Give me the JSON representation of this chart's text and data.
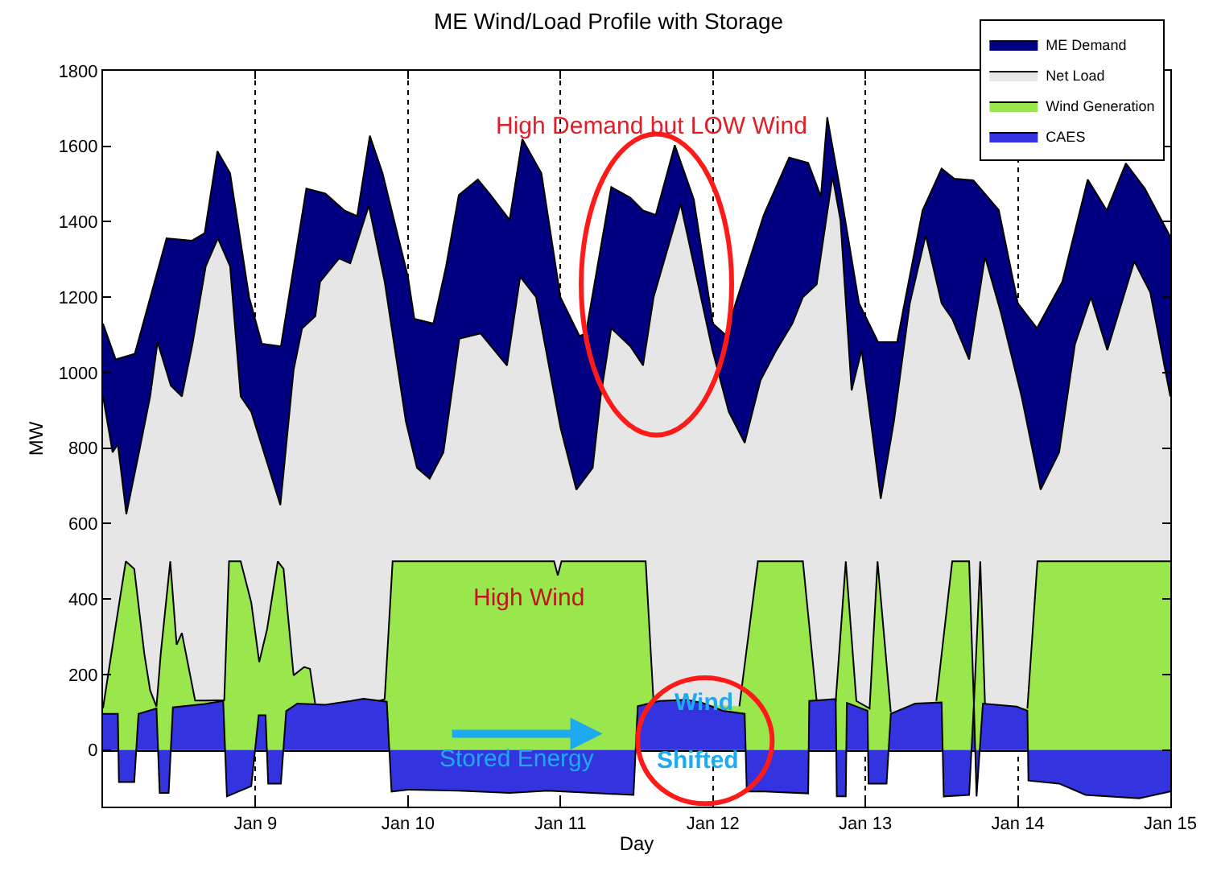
{
  "chart_data": {
    "type": "area",
    "title": "ME Wind/Load Profile with Storage",
    "xlabel": "Day",
    "ylabel": "MW",
    "xlim": [
      "--01-08",
      "--01-15"
    ],
    "xticks": [
      {
        "value": "--01-09",
        "label": "Jan 9"
      },
      {
        "value": "--01-10",
        "label": "Jan 10"
      },
      {
        "value": "--01-11",
        "label": "Jan 11"
      },
      {
        "value": "--01-12",
        "label": "Jan 12"
      },
      {
        "value": "--01-13",
        "label": "Jan 13"
      },
      {
        "value": "--01-14",
        "label": "Jan 14"
      },
      {
        "value": "--01-15",
        "label": "Jan 15"
      }
    ],
    "ylim": [
      -150,
      1800
    ],
    "yticks": [
      0,
      200,
      400,
      600,
      800,
      1000,
      1200,
      1400,
      1600,
      1800
    ],
    "grid": "x",
    "legend": "top right",
    "annotations": [
      "High Demand but LOW Wind",
      "High Wind",
      "Stored Energy",
      "Wind",
      "Shifted"
    ],
    "series": [
      {
        "name": "ME Demand",
        "color": "#000080",
        "x": [
          "--01-08T00:00",
          "--01-08T02:00",
          "--01-08T05:00",
          "--01-08T09:00",
          "--01-08T10:00",
          "--01-08T14:00",
          "--01-08T16:00",
          "--01-08T18:00",
          "--01-08T20:00",
          "--01-08T23:00",
          "--01-09T01:00",
          "--01-09T04:00",
          "--01-09T08:00",
          "--01-09T11:00",
          "--01-09T14:00",
          "--01-09T16:00",
          "--01-09T18:00",
          "--01-09T20:00",
          "--01-10T00:00",
          "--01-10T01:00",
          "--01-10T04:00",
          "--01-10T06:00",
          "--01-10T08:00",
          "--01-10T11:00",
          "--01-10T13:00",
          "--01-10T16:00",
          "--01-10T18:00",
          "--01-10T21:00",
          "--01-11T00:00",
          "--01-11T03:00",
          "--01-11T04:00",
          "--01-11T08:00",
          "--01-11T11:00",
          "--01-11T13:00",
          "--01-11T15:00",
          "--01-11T18:00",
          "--01-11T21:00",
          "--01-12T00:00",
          "--01-12T02:00",
          "--01-12T08:00",
          "--01-12T12:00",
          "--01-12T15:00",
          "--01-12T17:00",
          "--01-12T18:00",
          "--01-12T20:00",
          "--01-12T23:00",
          "--01-13T02:00",
          "--01-13T05:00",
          "--01-13T06:00",
          "--01-13T09:00",
          "--01-13T12:00",
          "--01-13T14:00",
          "--01-13T17:00",
          "--01-13T21:00",
          "--01-14T00:00",
          "--01-14T03:00",
          "--01-14T07:00",
          "--01-14T11:00",
          "--01-14T14:00",
          "--01-14T17:00",
          "--01-14T20:00",
          "--01-15T00:00"
        ],
        "values": [
          1130,
          1035,
          1050,
          1295,
          1356,
          1350,
          1370,
          1587,
          1529,
          1200,
          1077,
          1070,
          1488,
          1475,
          1430,
          1415,
          1628,
          1529,
          1254,
          1143,
          1130,
          1282,
          1471,
          1512,
          1471,
          1405,
          1619,
          1529,
          1200,
          1097,
          1104,
          1492,
          1464,
          1430,
          1418,
          1603,
          1459,
          1130,
          1100,
          1418,
          1570,
          1556,
          1467,
          1677,
          1488,
          1184,
          1081,
          1081,
          1170,
          1430,
          1541,
          1514,
          1510,
          1431,
          1184,
          1118,
          1241,
          1512,
          1430,
          1555,
          1488,
          1360
        ]
      },
      {
        "name": "Net Load",
        "color": "#e6e6e6",
        "x": [
          "--01-08T00:00",
          "--01-08T01:30",
          "--01-08T02:20",
          "--01-08T03:40",
          "--01-08T05:40",
          "--01-08T07:25",
          "--01-08T08:35",
          "--01-08T10:40",
          "--01-08T12:25",
          "--01-08T14:05",
          "--01-08T16:10",
          "--01-08T18:05",
          "--01-08T20:00",
          "--01-08T21:40",
          "--01-08T23:20",
          "--01-09T03:55",
          "--01-09T06:00",
          "--01-09T07:20",
          "--01-09T09:25",
          "--01-09T10:10",
          "--01-09T13:10",
          "--01-09T14:55",
          "--01-09T16:05",
          "--01-09T17:50",
          "--01-09T20:20",
          "--01-09T23:40",
          "--01-10T01:25",
          "--01-10T03:25",
          "--01-10T05:35",
          "--01-10T08:05",
          "--01-10T11:25",
          "--01-10T15:35",
          "--01-10T17:40",
          "--01-10T20:10",
          "--01-11T00:00",
          "--01-11T02:30",
          "--01-11T05:05",
          "--01-11T06:20",
          "--01-11T08:00",
          "--01-11T11:00",
          "--01-11T13:00",
          "--01-11T14:40",
          "--01-11T18:55",
          "--01-11T21:25",
          "--01-11T23:55",
          "--01-12T02:30",
          "--01-12T05:00",
          "--01-12T07:30",
          "--01-12T10:00",
          "--01-12T12:30",
          "--01-12T14:10",
          "--01-12T16:20",
          "--01-12T18:50",
          "--01-12T20:05",
          "--01-12T21:50",
          "--01-12T23:25",
          "--01-13T02:25",
          "--01-13T04:30",
          "--01-13T07:00",
          "--01-13T09:30",
          "--01-13T12:00",
          "--01-13T13:40",
          "--01-13T16:20",
          "--01-13T18:50",
          "--01-13T21:20",
          "--01-14T00:35",
          "--01-14T03:35",
          "--01-14T06:30",
          "--01-14T09:00",
          "--01-14T11:30",
          "--01-14T14:05",
          "--01-14T18:20",
          "--01-14T20:50",
          "--01-15T00:00"
        ],
        "values": [
          937,
          789,
          810,
          625,
          789,
          937,
          1081,
          966,
          937,
          1076,
          1282,
          1356,
          1282,
          937,
          896,
          649,
          1007,
          1117,
          1150,
          1241,
          1303,
          1290,
          1350,
          1443,
          1241,
          871,
          748,
          719,
          789,
          1090,
          1104,
          1019,
          1254,
          1200,
          855,
          690,
          748,
          937,
          1118,
          1070,
          1019,
          1200,
          1447,
          1254,
          1060,
          896,
          814,
          980,
          1060,
          1130,
          1200,
          1234,
          1520,
          1404,
          953,
          1060,
          666,
          871,
          1184,
          1364,
          1184,
          1143,
          1035,
          1307,
          1159,
          937,
          690,
          789,
          1076,
          1200,
          1060,
          1295,
          1213,
          937
        ]
      },
      {
        "name": "Wind Generation",
        "color": "#99e64d",
        "x": [
          "--01-08T00:00",
          "--01-08T01:55",
          "--01-08T03:35",
          "--01-08T04:55",
          "--01-08T06:30",
          "--01-08T07:25",
          "--01-08T08:25",
          "--01-08T09:05",
          "--01-08T10:35",
          "--01-08T11:35",
          "--01-08T12:25",
          "--01-08T14:30",
          "--01-08T16:10",
          "--01-08T19:05",
          "--01-08T19:50",
          "--01-08T21:40",
          "--01-08T23:20",
          "--01-09T00:35",
          "--01-09T01:50",
          "--01-09T03:30",
          "--01-09T04:25",
          "--01-09T06:00",
          "--01-09T07:40",
          "--01-09T08:35",
          "--01-09T09:25",
          "--01-09T14:00",
          "--01-09T18:35",
          "--01-09T20:20",
          "--01-09T21:35",
          "--01-10T22:20",
          "--01-10T23:00",
          "--01-10T23:35",
          "--01-11T00:10",
          "--01-11T13:25",
          "--01-11T14:40",
          "--01-11T21:00",
          "--01-12T04:10",
          "--01-12T07:05",
          "--01-12T14:10",
          "--01-12T16:20",
          "--01-12T19:20",
          "--01-12T20:55",
          "--01-12T22:35",
          "--01-13T00:40",
          "--01-13T01:55",
          "--01-13T04:00",
          "--01-13T08:00",
          "--01-13T11:10",
          "--01-13T13:40",
          "--01-13T16:20",
          "--01-13T17:05",
          "--01-13T18:05",
          "--01-13T18:50",
          "--01-13T22:00",
          "--01-14T01:30",
          "--01-14T03:05",
          "--01-15T00:00"
        ],
        "values": [
          111,
          321,
          500,
          480,
          255,
          158,
          115,
          255,
          500,
          279,
          310,
          131,
          131,
          132,
          500,
          500,
          391,
          233,
          321,
          500,
          480,
          198,
          220,
          215,
          120,
          null,
          125,
          135,
          500,
          500,
          500,
          463,
          500,
          500,
          125,
          null,
          116,
          500,
          500,
          130,
          130,
          500,
          130,
          110,
          500,
          100,
          null,
          130,
          500,
          500,
          120,
          500,
          120,
          null,
          110,
          500,
          500
        ]
      },
      {
        "name": "CAES",
        "color": "#3333e0",
        "x": [
          "--01-08T00:00",
          "--01-08T02:20",
          "--01-08T02:30",
          "--01-08T04:55",
          "--01-08T05:35",
          "--01-08T08:25",
          "--01-08T08:55",
          "--01-08T10:20",
          "--01-08T11:00",
          "--01-08T16:00",
          "--01-08T18:55",
          "--01-08T19:30",
          "--01-08T23:20",
          "--01-09T00:30",
          "--01-09T01:35",
          "--01-09T02:00",
          "--01-09T04:00",
          "--01-09T04:50",
          "--01-09T06:35",
          "--01-09T11:00",
          "--01-09T15:00",
          "--01-09T17:00",
          "--01-09T20:40",
          "--01-09T21:25",
          "--01-10T00:00",
          "--01-10T08:00",
          "--01-10T16:00",
          "--01-10T22:00",
          "--01-11T05:00",
          "--01-11T11:30",
          "--01-11T12:10",
          "--01-11T15:35",
          "--01-11T19:50",
          "--01-11T22:20",
          "--01-12T01:35",
          "--01-12T05:00",
          "--01-12T05:20",
          "--01-12T08:10",
          "--01-12T15:00",
          "--01-12T15:10",
          "--01-12T19:20",
          "--01-12T19:30",
          "--01-12T20:55",
          "--01-12T21:05",
          "--01-13T00:20",
          "--01-13T00:30",
          "--01-13T03:20",
          "--01-13T04:00",
          "--01-13T07:50",
          "--01-13T12:00",
          "--01-13T12:20",
          "--01-13T16:20",
          "--01-13T17:05",
          "--01-13T17:30",
          "--01-13T18:30",
          "--01-13T23:50",
          "--01-14T01:30",
          "--01-14T01:40",
          "--01-14T06:30",
          "--01-14T10:40",
          "--01-14T19:05",
          "--01-15T00:00"
        ],
        "values": [
          96,
          96,
          -85,
          -85,
          96,
          110,
          -114,
          -114,
          113,
          122,
          130,
          -123,
          -96,
          92,
          92,
          -89,
          -89,
          103,
          123,
          120,
          130,
          136,
          128,
          -110,
          -105,
          -108,
          -114,
          -108,
          -114,
          -119,
          116,
          130,
          133,
          125,
          104,
          96,
          -110,
          -110,
          -115,
          130,
          135,
          -123,
          -123,
          125,
          104,
          -89,
          -89,
          96,
          123,
          126,
          -123,
          -119,
          123,
          -123,
          123,
          115,
          104,
          -81,
          -89,
          -119,
          -128,
          -110
        ]
      }
    ]
  }
}
